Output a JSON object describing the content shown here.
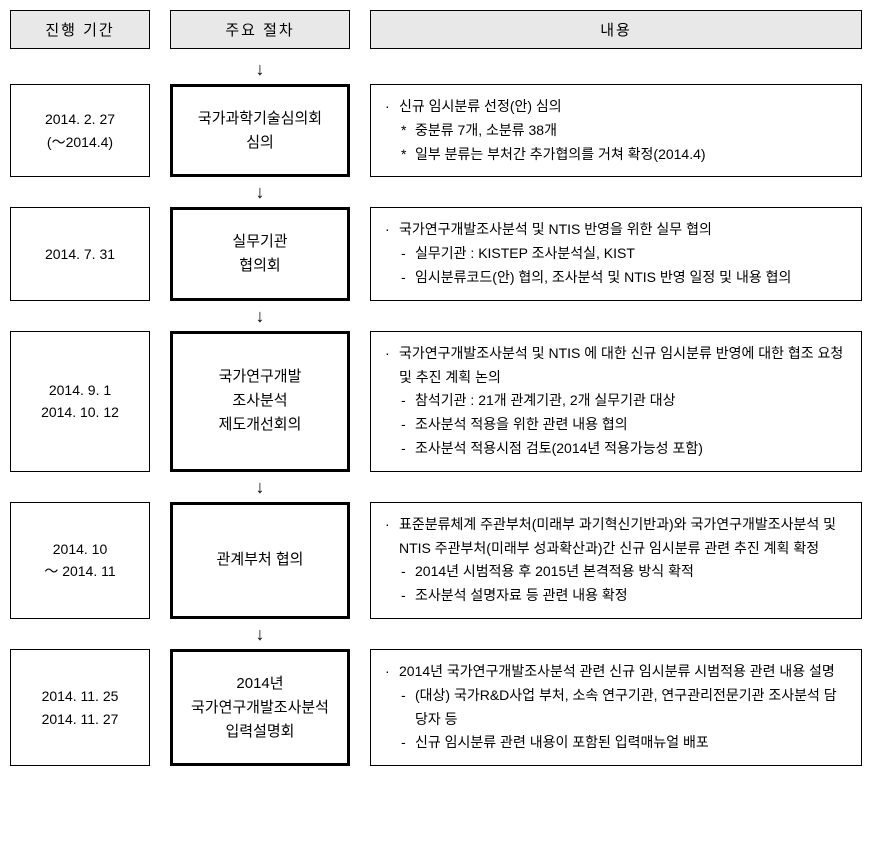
{
  "headers": {
    "date": "진행 기간",
    "procedure": "주요 절차",
    "content": "내용"
  },
  "steps": [
    {
      "date_lines": [
        "2014. 2. 27",
        "(～2014.4)"
      ],
      "proc_lines": [
        "국가과학기술심의회",
        "심의"
      ],
      "content_lines": [
        {
          "bullet": "·",
          "text": "신규 임시분류 선정(안) 심의",
          "indent": 0
        },
        {
          "bullet": "*",
          "text": "중분류 7개, 소분류 38개",
          "indent": 1
        },
        {
          "bullet": "*",
          "text": "일부 분류는 부처간 추가협의를 거쳐 확정(2014.4)",
          "indent": 1
        }
      ]
    },
    {
      "date_lines": [
        "2014. 7. 31"
      ],
      "proc_lines": [
        "실무기관",
        "협의회"
      ],
      "content_lines": [
        {
          "bullet": "·",
          "text": "국가연구개발조사분석 및 NTIS 반영을 위한 실무 협의",
          "indent": 0
        },
        {
          "bullet": "-",
          "text": "실무기관 : KISTEP 조사분석실, KIST",
          "indent": 1
        },
        {
          "bullet": "-",
          "text": "임시분류코드(안) 협의, 조사분석 및 NTIS 반영 일정 및 내용 협의",
          "indent": 1
        }
      ]
    },
    {
      "date_lines": [
        "2014. 9. 1",
        "2014. 10. 12"
      ],
      "proc_lines": [
        "국가연구개발",
        "조사분석",
        "제도개선회의"
      ],
      "content_lines": [
        {
          "bullet": "·",
          "text": "국가연구개발조사분석 및 NTIS 에 대한 신규 임시분류 반영에 대한 협조 요청 및 추진 계획 논의",
          "indent": 0
        },
        {
          "bullet": "-",
          "text": "참석기관 : 21개 관계기관, 2개 실무기관 대상",
          "indent": 1
        },
        {
          "bullet": "-",
          "text": "조사분석 적용을 위한 관련 내용 협의",
          "indent": 1
        },
        {
          "bullet": "-",
          "text": "조사분석 적용시점 검토(2014년 적용가능성 포함)",
          "indent": 1
        }
      ]
    },
    {
      "date_lines": [
        "2014. 10",
        "～ 2014. 11"
      ],
      "proc_lines": [
        "관계부처 협의"
      ],
      "content_lines": [
        {
          "bullet": "·",
          "text": "표준분류체계 주관부처(미래부 과기혁신기반과)와 국가연구개발조사분석 및 NTIS 주관부처(미래부 성과확산과)간 신규 임시분류 관련 추진 계획 확정",
          "indent": 0
        },
        {
          "bullet": "-",
          "text": "2014년 시범적용 후 2015년 본격적용 방식 확적",
          "indent": 1
        },
        {
          "bullet": "-",
          "text": "조사분석 설명자료 등 관련 내용 확정",
          "indent": 1
        }
      ]
    },
    {
      "date_lines": [
        "2014. 11. 25",
        "2014. 11. 27"
      ],
      "proc_lines": [
        "2014년",
        "국가연구개발조사분석",
        "입력설명회"
      ],
      "content_lines": [
        {
          "bullet": "·",
          "text": "2014년 국가연구개발조사분석 관련 신규 임시분류 시범적용 관련 내용 설명",
          "indent": 0
        },
        {
          "bullet": "-",
          "text": "(대상) 국가R&D사업 부처, 소속 연구기관, 연구관리전문기관 조사분석 담당자 등",
          "indent": 1
        },
        {
          "bullet": "-",
          "text": "신규 임시분류 관련 내용이 포함된 입력매뉴얼 배포",
          "indent": 1
        }
      ]
    }
  ],
  "arrow_glyph": "↓",
  "colors": {
    "header_bg": "#e8e8e8",
    "border": "#000000",
    "bg": "#ffffff"
  }
}
